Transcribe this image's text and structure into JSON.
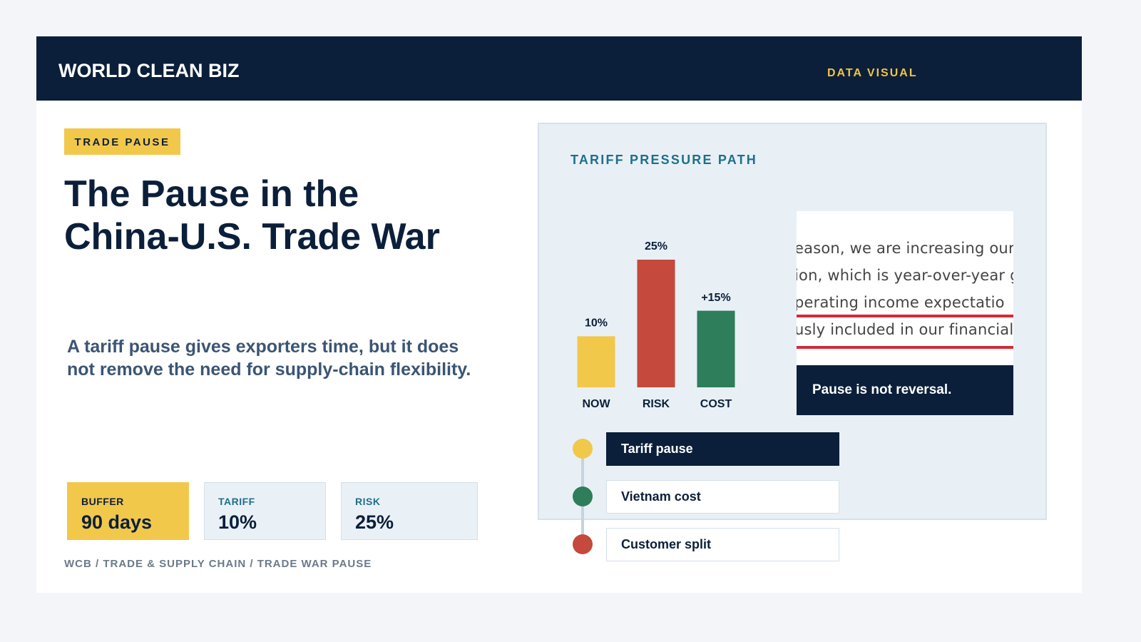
{
  "header": {
    "brand": "WORLD CLEAN BIZ",
    "section": "DATA VISUAL"
  },
  "hero": {
    "tag": "TRADE PAUSE",
    "headline": [
      "The Pause in the",
      "China-U.S. Trade War"
    ],
    "summary": "A tariff pause gives exporters time, but it does not remove the need for supply-chain flexibility."
  },
  "stats": [
    {
      "label": "BUFFER",
      "value": "90 days"
    },
    {
      "label": "TARIFF",
      "value": "10%"
    },
    {
      "label": "RISK",
      "value": "25%"
    }
  ],
  "footer": "WCB / TRADE & SUPPLY CHAIN / TRADE WAR PAUSE",
  "chart_data": {
    "type": "bar",
    "title": "TARIFF PRESSURE PATH",
    "categories": [
      "NOW",
      "RISK",
      "COST"
    ],
    "values": [
      10,
      25,
      15
    ],
    "value_labels": [
      "10%",
      "25%",
      "+15%"
    ],
    "colors": [
      "#f2c84b",
      "#c5493c",
      "#2e7d5b"
    ]
  },
  "excerpt": {
    "lines": [
      "eason, we are increasing our",
      "ion, which is year-over-year g",
      "perating income expectatio",
      "usly included in our financial"
    ],
    "caption": "Pause is not reversal."
  },
  "timeline": [
    "Tariff pause",
    "Vietnam cost",
    "Customer split"
  ]
}
